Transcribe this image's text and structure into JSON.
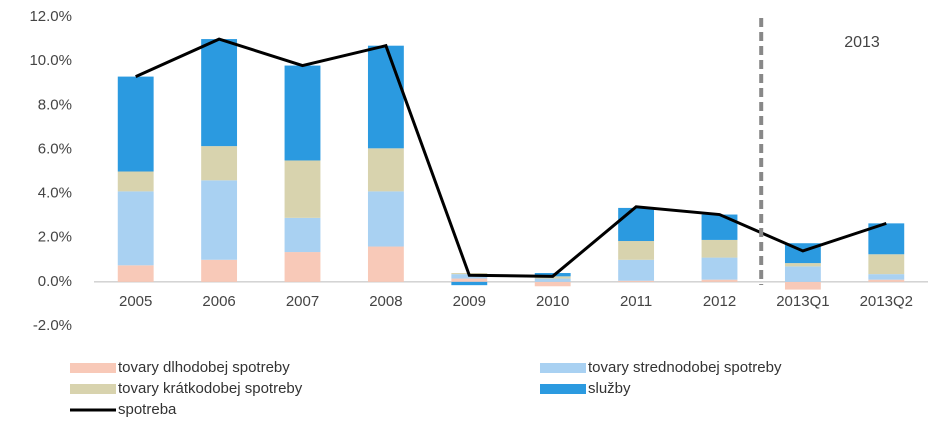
{
  "chart_data": {
    "type": "bar",
    "categories": [
      "2005",
      "2006",
      "2007",
      "2008",
      "2009",
      "2010",
      "2011",
      "2012",
      "2013Q1",
      "2013Q2"
    ],
    "series": [
      {
        "name": "tovary dlhodobej spotreby",
        "color": "#f8c9b8",
        "values": [
          0.75,
          1.0,
          1.35,
          1.6,
          0.15,
          -0.2,
          0.05,
          0.1,
          -0.35,
          0.1
        ]
      },
      {
        "name": "tovary strednodobej spotreby",
        "color": "#a9d1f2",
        "values": [
          3.35,
          3.6,
          1.55,
          2.5,
          0.2,
          0.15,
          0.95,
          1.0,
          0.7,
          0.25
        ]
      },
      {
        "name": "tovary krátkodobej spotreby",
        "color": "#d8d3ae",
        "values": [
          0.9,
          1.55,
          2.6,
          1.95,
          0.05,
          0.1,
          0.85,
          0.8,
          0.15,
          0.9
        ]
      },
      {
        "name": "služby",
        "color": "#2b9ae0",
        "values": [
          4.3,
          4.85,
          4.3,
          4.65,
          -0.15,
          0.15,
          1.5,
          1.15,
          0.9,
          1.4
        ]
      },
      {
        "name": "spotreba",
        "type": "line",
        "color": "#000000",
        "values": [
          9.3,
          11.0,
          9.8,
          10.7,
          0.3,
          0.25,
          3.4,
          3.05,
          1.4,
          2.65
        ]
      }
    ],
    "annotations": [
      "2013"
    ],
    "ylim": [
      -2,
      12
    ],
    "yticks": [
      {
        "value": -2,
        "label": "-2.0%"
      },
      {
        "value": 0,
        "label": "0.0%"
      },
      {
        "value": 2,
        "label": "2.0%"
      },
      {
        "value": 4,
        "label": "4.0%"
      },
      {
        "value": 6,
        "label": "6.0%"
      },
      {
        "value": 8,
        "label": "8.0%"
      },
      {
        "value": 10,
        "label": "10.0%"
      },
      {
        "value": 12,
        "label": "12.0%"
      }
    ],
    "grid": false
  }
}
